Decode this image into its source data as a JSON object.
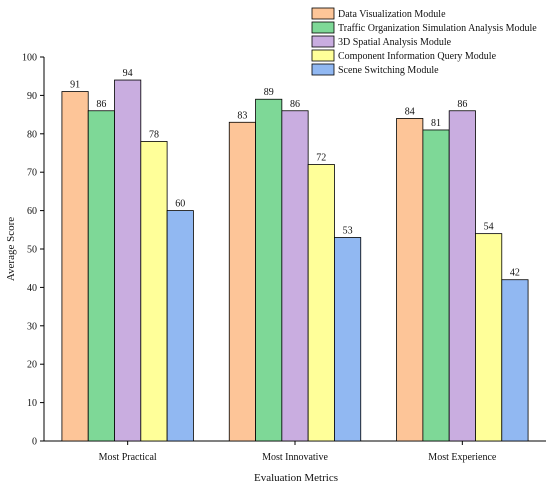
{
  "chart_data": {
    "type": "bar",
    "xlabel": "Evaluation Metrics",
    "ylabel": "Average Score",
    "ylim": [
      0,
      100
    ],
    "yticks": [
      0,
      10,
      20,
      30,
      40,
      50,
      60,
      70,
      80,
      90,
      100
    ],
    "categories": [
      "Most Practical",
      "Most Innovative",
      "Most Experience"
    ],
    "series": [
      {
        "name": "Data Visualization Module",
        "color": "#FDC598",
        "values": [
          91,
          83,
          84
        ]
      },
      {
        "name": "Traffic Organization Simulation Analysis Module",
        "color": "#7ED897",
        "values": [
          86,
          89,
          81
        ]
      },
      {
        "name": "3D Spatial Analysis Module",
        "color": "#C9ADE0",
        "values": [
          94,
          86,
          86
        ]
      },
      {
        "name": "Component Information Query Module",
        "color": "#FFFF99",
        "values": [
          78,
          72,
          54
        ]
      },
      {
        "name": "Scene Switching Module",
        "color": "#91B8F2",
        "values": [
          60,
          53,
          42
        ]
      }
    ],
    "legend": "top-right",
    "grid": false
  }
}
